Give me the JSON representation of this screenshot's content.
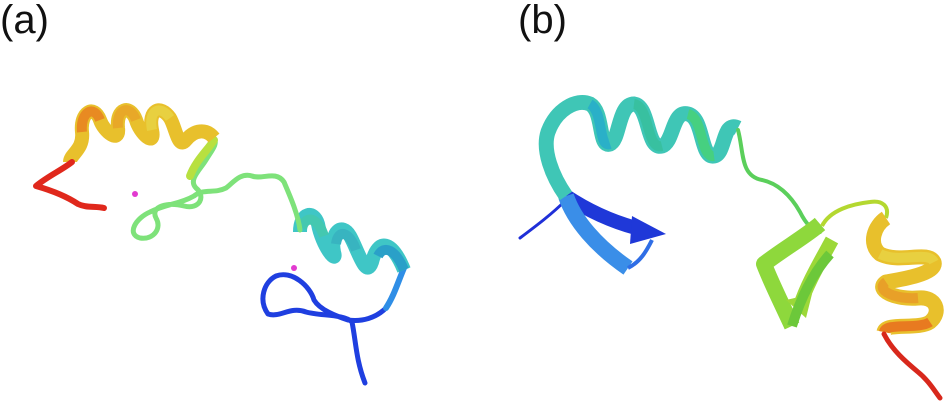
{
  "panels": [
    {
      "id": "a",
      "label": "(a)",
      "structure": "protein-ribbon-helices-with-ions"
    },
    {
      "id": "b",
      "label": "(b)",
      "structure": "protein-ribbon-helix-strands"
    }
  ],
  "colors": {
    "n_terminus": "#1f2fd8",
    "blue": "#2f6ee6",
    "cyan": "#3fc6c6",
    "teal": "#46d7a6",
    "green": "#5bd95b",
    "lime": "#a7dc3a",
    "yellow": "#e8cf2c",
    "orange": "#e89a22",
    "red": "#e0281c",
    "ion": "#e23ad0"
  }
}
